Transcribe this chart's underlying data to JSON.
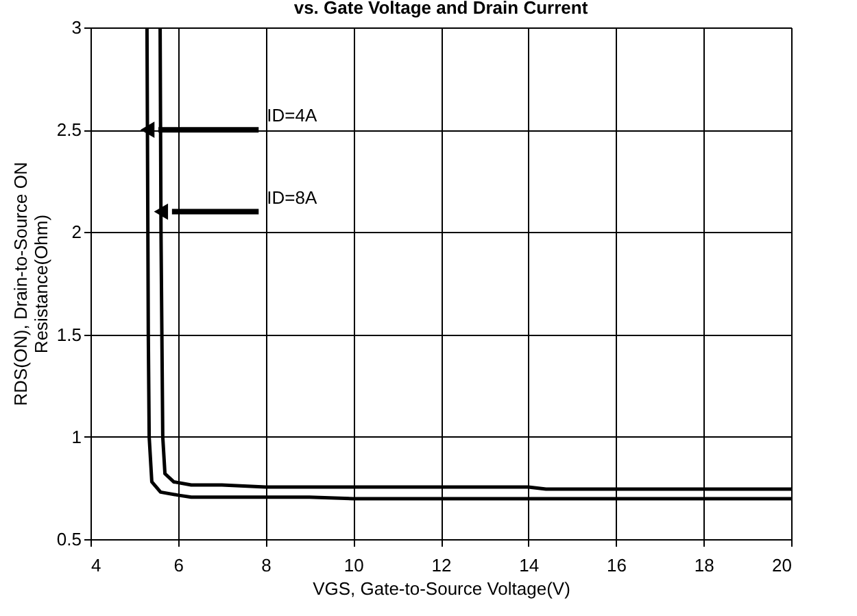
{
  "chart_data": {
    "type": "line",
    "title": "vs. Gate Voltage and Drain Current",
    "xlabel": "VGS, Gate-to-Source Voltage(V)",
    "ylabel": "RDS(ON), Drain-to-Source ON Resistance(Ohm)",
    "series": [
      {
        "color": "#000000",
        "x": [
          5.29,
          5.3,
          5.31,
          5.32,
          5.34,
          5.4,
          5.6,
          6.0,
          6.3,
          7.0,
          8.0,
          9.0,
          10.0,
          12.0,
          14.0,
          16.0,
          18.0,
          20.0
        ],
        "values": [
          3.0,
          2.5,
          2.0,
          1.5,
          1.0,
          0.78,
          0.73,
          0.715,
          0.705,
          0.705,
          0.705,
          0.705,
          0.698,
          0.698,
          0.698,
          0.698,
          0.698,
          0.698
        ]
      },
      {
        "color": "#000000",
        "x": [
          5.59,
          5.6,
          5.61,
          5.63,
          5.65,
          5.7,
          5.9,
          6.3,
          7.0,
          8.0,
          10.0,
          12.0,
          14.0,
          14.4,
          16.0,
          18.0,
          20.0
        ],
        "values": [
          3.0,
          2.5,
          2.0,
          1.5,
          1.0,
          0.82,
          0.78,
          0.765,
          0.765,
          0.755,
          0.755,
          0.755,
          0.755,
          0.745,
          0.745,
          0.745,
          0.745
        ]
      }
    ],
    "annotations": [
      {
        "text": "ID=4A",
        "x": 5.3,
        "y": 2.5
      },
      {
        "text": "ID=8A",
        "x": 5.61,
        "y": 2.1
      }
    ],
    "xlim": [
      4,
      20
    ],
    "xticks": [
      4,
      6,
      8,
      10,
      12,
      14,
      16,
      18,
      20
    ],
    "ylim": [
      0.5,
      3
    ],
    "yticks": [
      0.5,
      1,
      1.5,
      2,
      2.5,
      3
    ],
    "grid": true,
    "legend": false,
    "marker": "none",
    "line_style": "solid"
  }
}
